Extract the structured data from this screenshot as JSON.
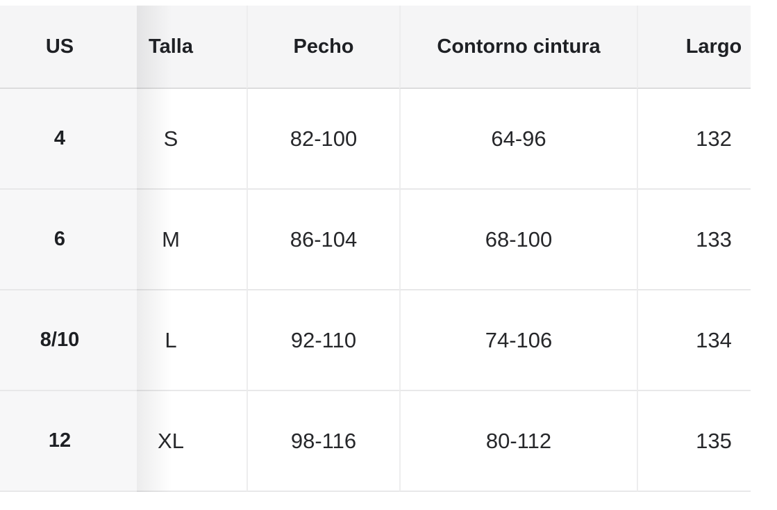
{
  "page": {
    "background": "#ffffff",
    "description_colors": {
      "header_bg": "#f5f5f6",
      "sticky_column_bg": "#f7f7f8",
      "row_border": "#e8e8e9",
      "header_border": "#dcdcdd",
      "column_border": "#ededee",
      "text": "#26272a",
      "text_bold": "#1e2024"
    }
  },
  "table": {
    "columns": [
      {
        "key": "us",
        "label": "US"
      },
      {
        "key": "talla",
        "label": "Talla"
      },
      {
        "key": "pecho",
        "label": "Pecho"
      },
      {
        "key": "contorno",
        "label": "Contorno cintura"
      },
      {
        "key": "largo",
        "label": "Largo"
      }
    ],
    "rows": [
      {
        "us": "4",
        "talla": "S",
        "pecho": "82-100",
        "contorno": "64-96",
        "largo": "132"
      },
      {
        "us": "6",
        "talla": "M",
        "pecho": "86-104",
        "contorno": "68-100",
        "largo": "133"
      },
      {
        "us": "8/10",
        "talla": "L",
        "pecho": "92-110",
        "contorno": "74-106",
        "largo": "134"
      },
      {
        "us": "12",
        "talla": "XL",
        "pecho": "98-116",
        "contorno": "80-112",
        "largo": "135"
      }
    ]
  }
}
